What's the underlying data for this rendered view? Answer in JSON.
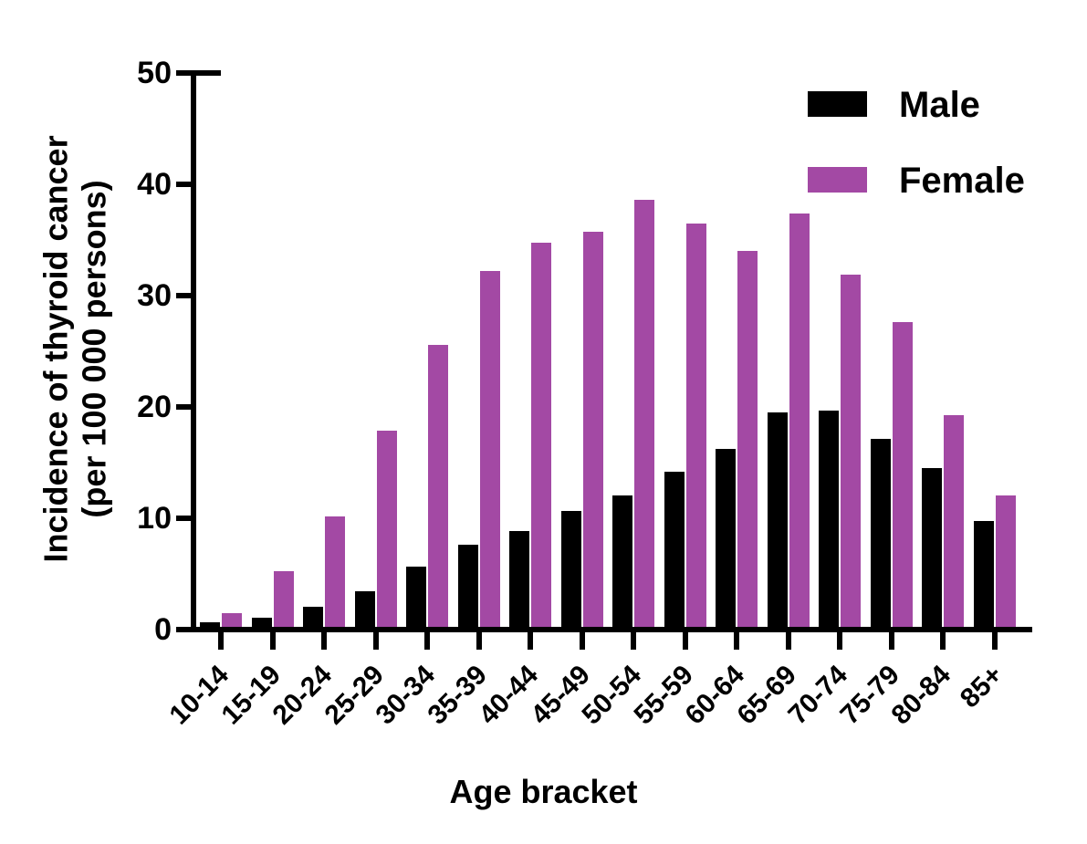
{
  "figure": {
    "y_axis": {
      "title_lines": [
        "Incidence of thyroid cancer",
        "(per 100 000 persons)"
      ]
    }
  },
  "chart_data": {
    "type": "bar",
    "bar_style": "grouped",
    "title": "",
    "xlabel": "Age bracket",
    "ylabel": "Incidence of thyroid cancer (per 100 000 persons)",
    "ylim": [
      0,
      50
    ],
    "yticks": [
      0,
      10,
      20,
      30,
      40,
      50
    ],
    "grid": false,
    "legend_position": "top-right",
    "categories": [
      "10-14",
      "15-19",
      "20-24",
      "25-29",
      "30-34",
      "35-39",
      "40-44",
      "45-49",
      "50-54",
      "55-59",
      "60-64",
      "65-69",
      "70-74",
      "75-79",
      "80-84",
      "85+"
    ],
    "series": [
      {
        "name": "Male",
        "color": "#000000",
        "values": [
          0.4,
          0.8,
          1.8,
          3.2,
          5.4,
          7.4,
          8.6,
          10.4,
          11.8,
          13.9,
          16.0,
          19.3,
          19.4,
          16.9,
          14.3,
          9.5
        ]
      },
      {
        "name": "Female",
        "color": "#A349A4",
        "values": [
          1.2,
          5.0,
          9.9,
          17.6,
          25.3,
          32.0,
          34.5,
          35.5,
          38.4,
          36.2,
          33.8,
          37.1,
          31.6,
          27.4,
          19.0,
          11.8
        ]
      }
    ]
  }
}
